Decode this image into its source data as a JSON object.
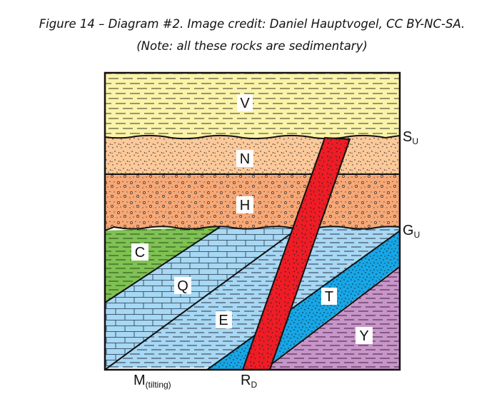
{
  "caption": {
    "line1": "Figure 14 – Diagram #2. Image credit: Daniel Hauptvogel, CC BY-NC-SA.",
    "line2": "(Note: all these rocks are sedimentary)"
  },
  "units": {
    "V": "V",
    "N": "N",
    "H": "H",
    "C": "C",
    "Q": "Q",
    "E": "E",
    "T": "T",
    "Y": "Y"
  },
  "side_labels": {
    "su_main": "S",
    "su_sub": "U",
    "gu_main": "G",
    "gu_sub": "U",
    "m_main": "M",
    "m_sub": "(tilting)",
    "rd_main": "R",
    "rd_sub": "D"
  },
  "colors": {
    "V": "#fbf3a8",
    "N": "#fbc99a",
    "H": "#f6a877",
    "C": "#7fc253",
    "Q": "#a7d8f4",
    "E": "#a7d8f4",
    "T": "#17a6e6",
    "Y": "#c895c9",
    "R_dike": "#ee1c25"
  }
}
